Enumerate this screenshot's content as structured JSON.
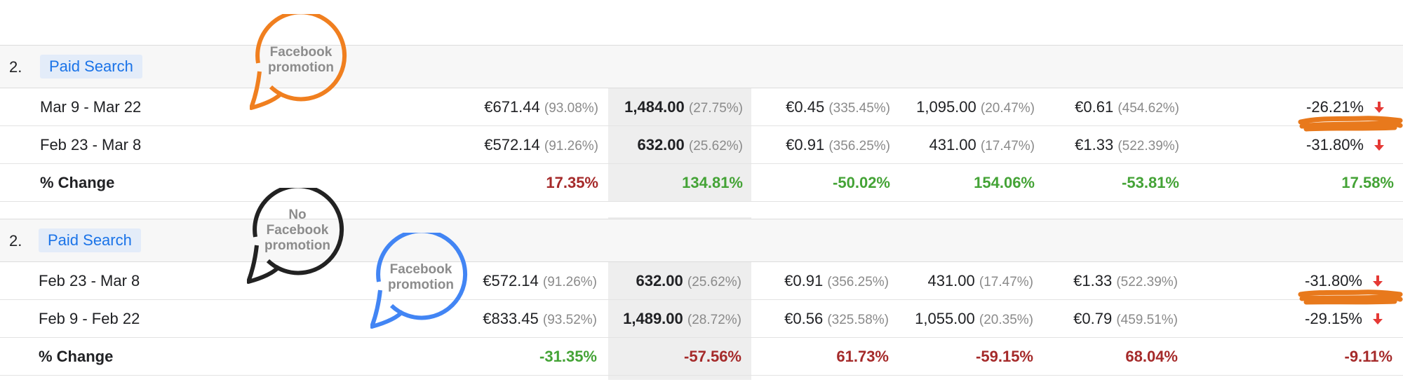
{
  "blocks": [
    {
      "rank": "2.",
      "channel": "Paid Search",
      "rows": [
        {
          "label": "Mar 9 - Mar 22",
          "c1": {
            "v": "€671.44",
            "p": "(93.08%)"
          },
          "c2": {
            "v": "1,484.00",
            "p": "(27.75%)"
          },
          "c3": {
            "v": "€0.45",
            "p": "(335.45%)"
          },
          "c4": {
            "v": "1,095.00",
            "p": "(20.47%)"
          },
          "c5": {
            "v": "€0.61",
            "p": "(454.62%)"
          },
          "c6": "-26.21%"
        },
        {
          "label": "Feb 23 - Mar 8",
          "c1": {
            "v": "€572.14",
            "p": "(91.26%)"
          },
          "c2": {
            "v": "632.00",
            "p": "(25.62%)"
          },
          "c3": {
            "v": "€0.91",
            "p": "(356.25%)"
          },
          "c4": {
            "v": "431.00",
            "p": "(17.47%)"
          },
          "c5": {
            "v": "€1.33",
            "p": "(522.39%)"
          },
          "c6": "-31.80%"
        }
      ],
      "change": {
        "label": "% Change",
        "values": [
          "17.35%",
          "134.81%",
          "-50.02%",
          "154.06%",
          "-53.81%",
          "17.58%"
        ]
      },
      "bubbles": [
        {
          "text": "Facebook\npromotion",
          "color": "#f07f1f"
        }
      ]
    },
    {
      "rank": "2.",
      "channel": "Paid Search",
      "rows": [
        {
          "label": "Feb 23 - Mar 8",
          "c1": {
            "v": "€572.14",
            "p": "(91.26%)"
          },
          "c2": {
            "v": "632.00",
            "p": "(25.62%)"
          },
          "c3": {
            "v": "€0.91",
            "p": "(356.25%)"
          },
          "c4": {
            "v": "431.00",
            "p": "(17.47%)"
          },
          "c5": {
            "v": "€1.33",
            "p": "(522.39%)"
          },
          "c6": "-31.80%"
        },
        {
          "label": "Feb 9 - Feb 22",
          "c1": {
            "v": "€833.45",
            "p": "(93.52%)"
          },
          "c2": {
            "v": "1,489.00",
            "p": "(28.72%)"
          },
          "c3": {
            "v": "€0.56",
            "p": "(325.58%)"
          },
          "c4": {
            "v": "1,055.00",
            "p": "(20.35%)"
          },
          "c5": {
            "v": "€0.79",
            "p": "(459.51%)"
          },
          "c6": "-29.15%"
        }
      ],
      "change": {
        "label": "% Change",
        "values": [
          "-31.35%",
          "-57.56%",
          "61.73%",
          "-59.15%",
          "68.04%",
          "-9.11%"
        ]
      },
      "bubbles": [
        {
          "text": "No\nFacebook\npromotion",
          "color": "#222222"
        },
        {
          "text": "Facebook\npromotion",
          "color": "#4285f4"
        }
      ]
    }
  ],
  "colors": {
    "positive": "#44a336",
    "negative": "#a52a2a",
    "arrow_down": "#e53935",
    "chip_bg": "#e3ecf9",
    "chip_text": "#1a73e8",
    "highlight_column": "#eeeeee",
    "scribble": "#e8791c"
  },
  "icons": {
    "trend": "arrow-down-icon"
  }
}
